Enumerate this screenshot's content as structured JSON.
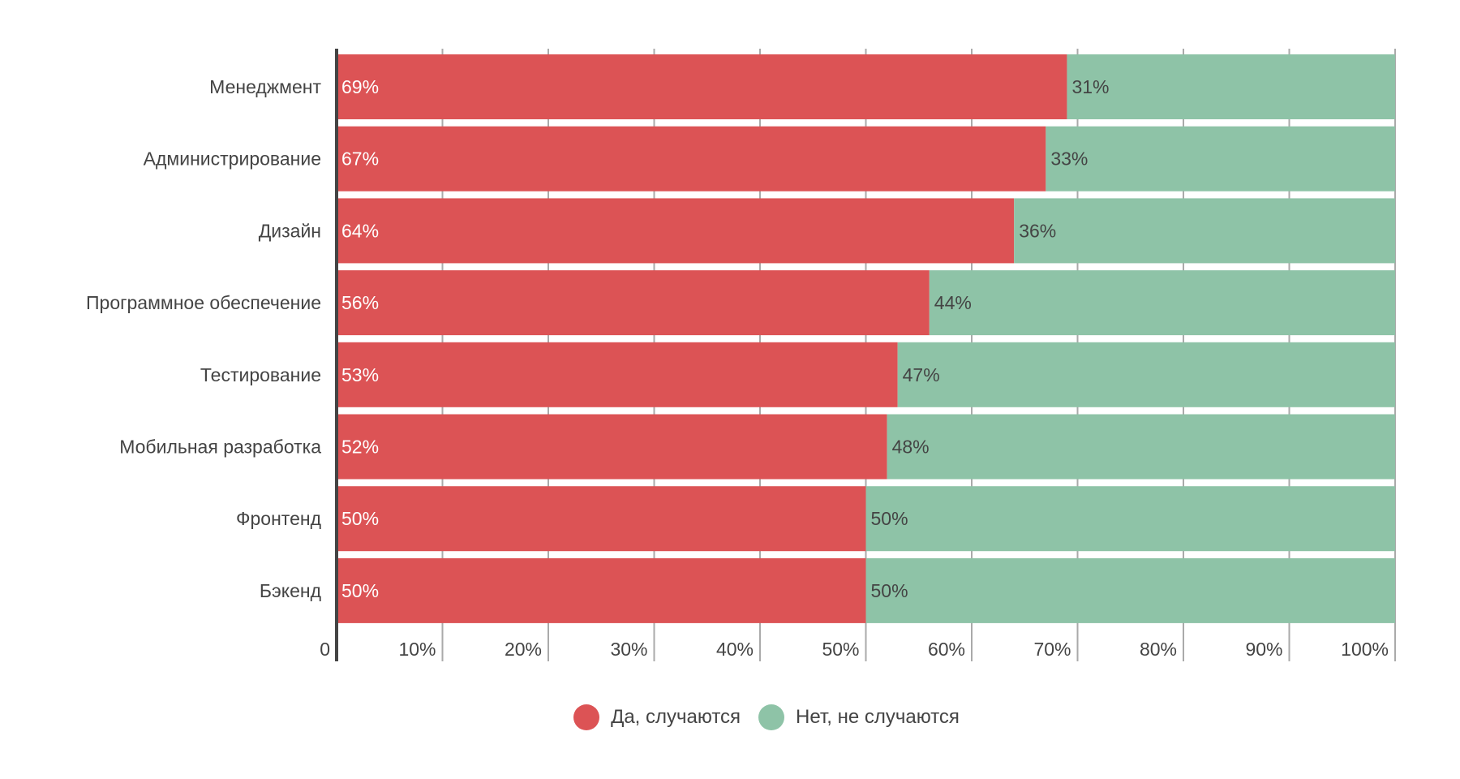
{
  "chart_data": {
    "type": "bar",
    "orientation": "horizontal",
    "stacked": true,
    "categories": [
      "Менеджмент",
      "Администрирование",
      "Дизайн",
      "Программное обеспечение",
      "Тестирование",
      "Мобильная разработка",
      "Фронтенд",
      "Бэкенд"
    ],
    "series": [
      {
        "name": "Да, случаются",
        "color": "#DC5355",
        "values": [
          69,
          67,
          64,
          56,
          53,
          52,
          50,
          50
        ]
      },
      {
        "name": "Нет, не случаются",
        "color": "#8EC3A7",
        "values": [
          31,
          33,
          36,
          44,
          47,
          48,
          50,
          50
        ]
      }
    ],
    "xlim": [
      0,
      100
    ],
    "x_ticks": [
      "0",
      "10%",
      "20%",
      "30%",
      "40%",
      "50%",
      "60%",
      "70%",
      "80%",
      "90%",
      "100%"
    ],
    "grid": true,
    "legend_position": "bottom",
    "data_labels_suffix": "%"
  }
}
